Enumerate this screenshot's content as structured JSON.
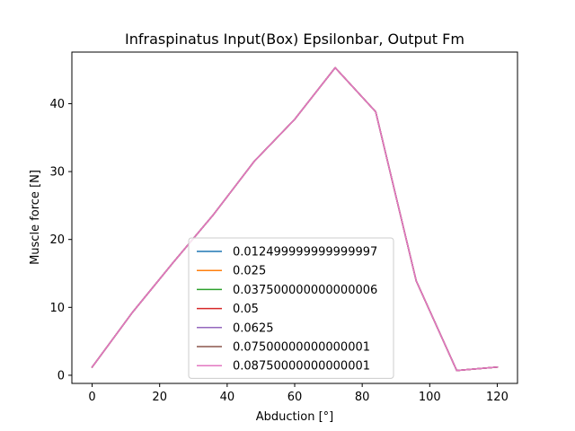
{
  "chart_data": {
    "type": "line",
    "title": "Infraspinatus Input(Box) Epsilonbar, Output Fm",
    "xlabel": "Abduction [°]",
    "ylabel": "Muscle force [N]",
    "xlim": [
      -6,
      126
    ],
    "ylim": [
      -1.2,
      47.6
    ],
    "xticks": [
      0,
      20,
      40,
      60,
      80,
      100,
      120
    ],
    "yticks": [
      0,
      10,
      20,
      30,
      40
    ],
    "grid": false,
    "legend_position": "lower-center",
    "x": [
      0,
      12,
      24,
      36,
      48,
      60,
      72,
      84,
      96,
      108,
      120
    ],
    "series": [
      {
        "name": "0.012499999999999997",
        "color": "#1f77b4",
        "values": [
          1.2,
          9.3,
          16.6,
          23.7,
          31.5,
          37.7,
          45.3,
          38.8,
          13.9,
          0.7,
          1.2
        ]
      },
      {
        "name": "0.025",
        "color": "#ff7f0e",
        "values": [
          1.2,
          9.3,
          16.6,
          23.7,
          31.5,
          37.7,
          45.3,
          38.8,
          13.9,
          0.7,
          1.2
        ]
      },
      {
        "name": "0.037500000000000006",
        "color": "#2ca02c",
        "values": [
          1.2,
          9.3,
          16.6,
          23.7,
          31.5,
          37.7,
          45.3,
          38.8,
          13.9,
          0.7,
          1.2
        ]
      },
      {
        "name": "0.05",
        "color": "#d62728",
        "values": [
          1.2,
          9.3,
          16.6,
          23.7,
          31.5,
          37.7,
          45.3,
          38.8,
          13.9,
          0.7,
          1.2
        ]
      },
      {
        "name": "0.0625",
        "color": "#9467bd",
        "values": [
          1.2,
          9.3,
          16.6,
          23.7,
          31.5,
          37.7,
          45.3,
          38.8,
          13.9,
          0.7,
          1.2
        ]
      },
      {
        "name": "0.07500000000000001",
        "color": "#8c564b",
        "values": [
          1.2,
          9.3,
          16.6,
          23.7,
          31.5,
          37.7,
          45.3,
          38.8,
          13.9,
          0.7,
          1.2
        ]
      },
      {
        "name": "0.08750000000000001",
        "color": "#e377c2",
        "values": [
          1.2,
          9.3,
          16.6,
          23.7,
          31.5,
          37.7,
          45.3,
          38.8,
          13.9,
          0.7,
          1.2
        ]
      }
    ]
  }
}
